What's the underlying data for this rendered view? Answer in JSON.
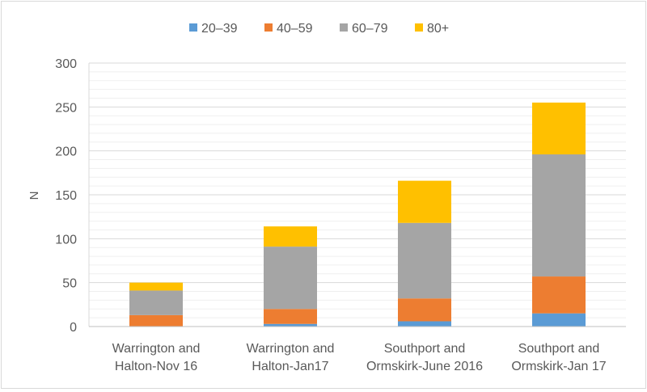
{
  "chart_data": {
    "type": "bar",
    "stacked": true,
    "title": "",
    "xlabel": "",
    "ylabel": "N",
    "ylim": [
      0,
      300
    ],
    "yticks": [
      0,
      50,
      100,
      150,
      200,
      250,
      300
    ],
    "minor_gridlines": true,
    "legend_position": "top",
    "categories": [
      [
        "Warrington and",
        "Halton-Nov 16"
      ],
      [
        "Warrington and",
        "Halton-Jan17"
      ],
      [
        "Southport and",
        "Ormskirk-June 2016"
      ],
      [
        "Southport and",
        "Ormskirk-Jan 17"
      ]
    ],
    "series": [
      {
        "name": "20–39",
        "color": "#5B9BD5",
        "values": [
          0,
          3,
          6,
          15
        ]
      },
      {
        "name": "40–59",
        "color": "#ED7D31",
        "values": [
          13,
          17,
          26,
          42
        ]
      },
      {
        "name": "60–79",
        "color": "#A5A5A5",
        "values": [
          28,
          71,
          86,
          139
        ]
      },
      {
        "name": "80+",
        "color": "#FFC000",
        "values": [
          9,
          23,
          48,
          59
        ]
      }
    ]
  }
}
